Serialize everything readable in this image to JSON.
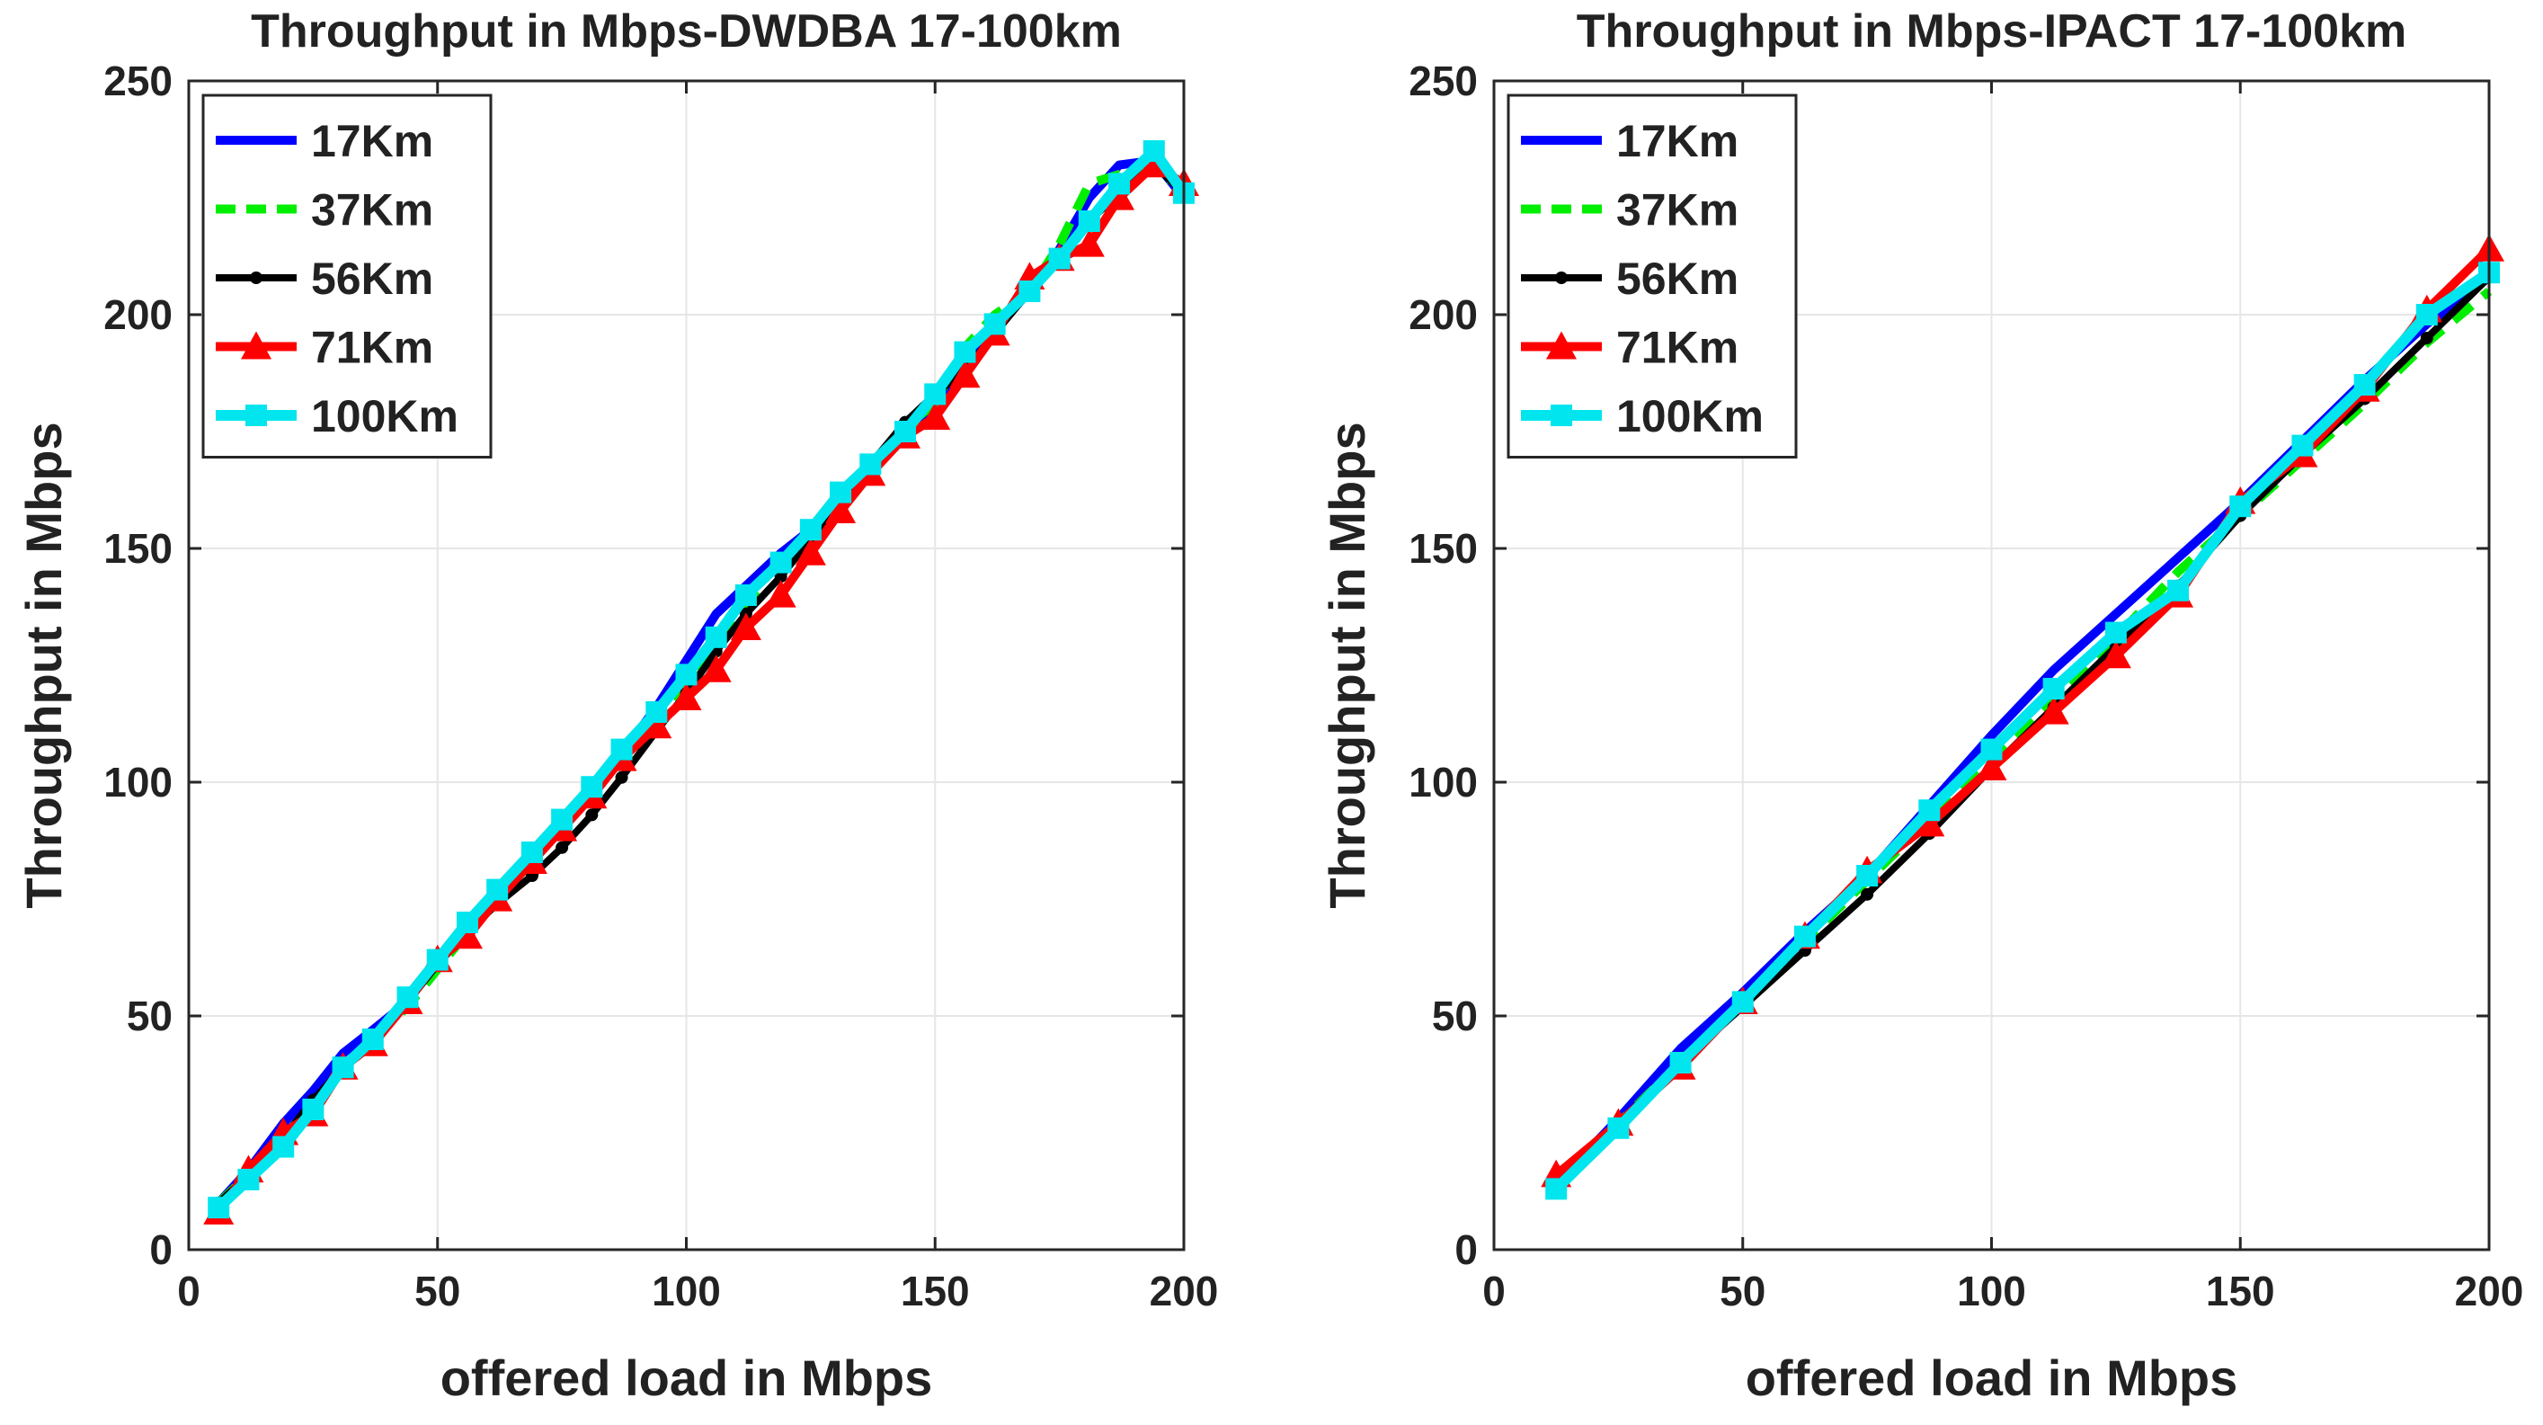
{
  "chart_data": [
    {
      "type": "line",
      "title": "Throughput in Mbps-DWDBA 17-100km",
      "xlabel": "offered load in Mbps",
      "ylabel": "Throughput in Mbps",
      "xlim": [
        0,
        200
      ],
      "ylim": [
        0,
        250
      ],
      "xticks": [
        0,
        50,
        100,
        150,
        200
      ],
      "yticks": [
        0,
        50,
        100,
        150,
        200,
        250
      ],
      "grid": true,
      "legend_position": "top-left",
      "series": [
        {
          "name": "17Km",
          "color": "#0000ff",
          "style": "solid",
          "marker": "none",
          "x": [
            6,
            12,
            19,
            25,
            31,
            37,
            44,
            50,
            56,
            62,
            69,
            75,
            81,
            87,
            94,
            100,
            106,
            112,
            119,
            125,
            131,
            137,
            144,
            150,
            156,
            162,
            169,
            175,
            181,
            187,
            194,
            200
          ],
          "y": [
            10,
            17,
            27,
            34,
            42,
            47,
            53,
            62,
            69,
            77,
            84,
            92,
            98,
            106,
            116,
            126,
            136,
            142,
            149,
            154,
            161,
            167,
            175,
            181,
            190,
            197,
            205,
            214,
            225,
            232,
            233,
            225
          ]
        },
        {
          "name": "37Km",
          "color": "#00ee00",
          "style": "dashed",
          "marker": "none",
          "x": [
            6,
            12,
            19,
            25,
            31,
            37,
            44,
            50,
            56,
            62,
            69,
            75,
            81,
            87,
            94,
            100,
            106,
            112,
            119,
            125,
            131,
            137,
            144,
            150,
            156,
            162,
            169,
            175,
            181,
            187,
            194,
            200
          ],
          "y": [
            10,
            16,
            24,
            31,
            39,
            45,
            52,
            60,
            68,
            76,
            84,
            91,
            98,
            106,
            114,
            121,
            128,
            138,
            148,
            152,
            158,
            166,
            176,
            181,
            193,
            200,
            205,
            215,
            228,
            230,
            231,
            227
          ]
        },
        {
          "name": "56Km",
          "color": "#000000",
          "style": "solid",
          "marker": "dot",
          "x": [
            6,
            12,
            19,
            25,
            31,
            37,
            44,
            50,
            56,
            62,
            69,
            75,
            81,
            87,
            94,
            100,
            106,
            112,
            119,
            125,
            131,
            137,
            144,
            150,
            156,
            162,
            169,
            175,
            181,
            187,
            194,
            200
          ],
          "y": [
            10,
            16,
            24,
            32,
            39,
            45,
            53,
            61,
            68,
            74,
            80,
            86,
            93,
            101,
            111,
            119,
            128,
            136,
            144,
            152,
            160,
            168,
            177,
            183,
            188,
            196,
            205,
            212,
            220,
            226,
            232,
            226
          ]
        },
        {
          "name": "71Km",
          "color": "#ff0000",
          "style": "solid",
          "marker": "triangle",
          "x": [
            6,
            12,
            19,
            25,
            31,
            37,
            44,
            50,
            56,
            62,
            69,
            75,
            81,
            87,
            94,
            100,
            106,
            112,
            119,
            125,
            131,
            137,
            144,
            150,
            156,
            162,
            169,
            175,
            181,
            187,
            194,
            200
          ],
          "y": [
            8,
            17,
            25,
            29,
            39,
            44,
            53,
            62,
            67,
            75,
            83,
            90,
            97,
            105,
            112,
            118,
            124,
            133,
            140,
            149,
            158,
            166,
            174,
            178,
            187,
            196,
            208,
            212,
            215,
            225,
            232,
            228
          ]
        },
        {
          "name": "100Km",
          "color": "#00e5ee",
          "style": "solid",
          "marker": "square",
          "x": [
            6,
            12,
            19,
            25,
            31,
            37,
            44,
            50,
            56,
            62,
            69,
            75,
            81,
            87,
            94,
            100,
            106,
            112,
            119,
            125,
            131,
            137,
            144,
            150,
            156,
            162,
            169,
            175,
            181,
            187,
            194,
            200
          ],
          "y": [
            9,
            15,
            22,
            30,
            39,
            45,
            54,
            62,
            70,
            77,
            85,
            92,
            99,
            107,
            115,
            123,
            131,
            140,
            147,
            154,
            162,
            168,
            175,
            183,
            192,
            198,
            205,
            212,
            220,
            228,
            235,
            226
          ]
        }
      ]
    },
    {
      "type": "line",
      "title": "Throughput in Mbps-IPACT 17-100km",
      "xlabel": "offered load in Mbps",
      "ylabel": "Throughput in Mbps",
      "xlim": [
        0,
        200
      ],
      "ylim": [
        0,
        250
      ],
      "xticks": [
        0,
        50,
        100,
        150,
        200
      ],
      "yticks": [
        0,
        50,
        100,
        150,
        200,
        250
      ],
      "grid": true,
      "legend_position": "top-left",
      "series": [
        {
          "name": "17Km",
          "color": "#0000ff",
          "style": "solid",
          "marker": "none",
          "x": [
            12.5,
            25,
            37.5,
            50,
            62.5,
            75,
            87.5,
            100,
            112.5,
            125,
            137.5,
            150,
            162.5,
            175,
            187.5,
            200
          ],
          "y": [
            14,
            28,
            43,
            55,
            68,
            80,
            95,
            110,
            124,
            136,
            148,
            160,
            173,
            186,
            198,
            208
          ]
        },
        {
          "name": "37Km",
          "color": "#00ee00",
          "style": "dashed",
          "marker": "none",
          "x": [
            12.5,
            25,
            37.5,
            50,
            62.5,
            75,
            87.5,
            100,
            112.5,
            125,
            137.5,
            150,
            162.5,
            175,
            187.5,
            200
          ],
          "y": [
            14,
            27,
            40,
            53,
            66,
            79,
            92,
            105,
            118,
            131,
            145,
            157,
            169,
            181,
            194,
            205
          ]
        },
        {
          "name": "56Km",
          "color": "#000000",
          "style": "solid",
          "marker": "dot",
          "x": [
            12.5,
            25,
            37.5,
            50,
            62.5,
            75,
            87.5,
            100,
            112.5,
            125,
            137.5,
            150,
            162.5,
            175,
            187.5,
            200
          ],
          "y": [
            14,
            27,
            40,
            52,
            64,
            76,
            89,
            103,
            116,
            129,
            142,
            157,
            170,
            182,
            195,
            208
          ]
        },
        {
          "name": "71Km",
          "color": "#ff0000",
          "style": "solid",
          "marker": "triangle",
          "x": [
            12.5,
            25,
            37.5,
            50,
            62.5,
            75,
            87.5,
            100,
            112.5,
            125,
            137.5,
            150,
            162.5,
            175,
            187.5,
            200
          ],
          "y": [
            16,
            27,
            39,
            53,
            67,
            81,
            91,
            103,
            115,
            127,
            140,
            160,
            170,
            184,
            201,
            214
          ]
        },
        {
          "name": "100Km",
          "color": "#00e5ee",
          "style": "solid",
          "marker": "square",
          "x": [
            12.5,
            25,
            37.5,
            50,
            62.5,
            75,
            87.5,
            100,
            112.5,
            125,
            137.5,
            150,
            162.5,
            175,
            187.5,
            200
          ],
          "y": [
            13,
            26,
            40,
            53,
            67,
            80,
            94,
            107,
            120,
            132,
            141,
            159,
            172,
            185,
            200,
            209
          ]
        }
      ]
    }
  ]
}
